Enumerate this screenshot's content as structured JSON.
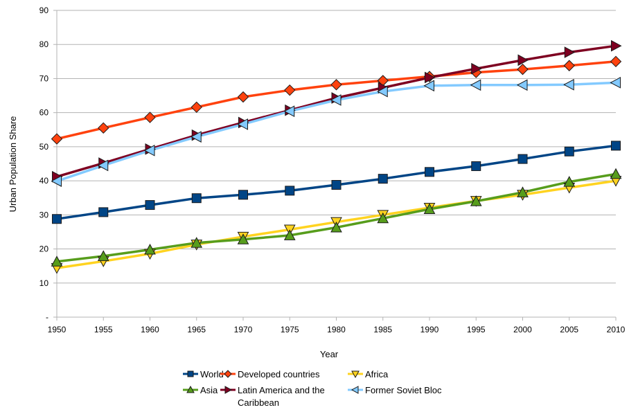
{
  "chart_data": {
    "type": "line",
    "title": "",
    "xlabel": "Year",
    "ylabel": "Urban Population Share",
    "x": [
      1950,
      1955,
      1960,
      1965,
      1970,
      1975,
      1980,
      1985,
      1990,
      1995,
      2000,
      2005,
      2010
    ],
    "xlim": [
      1950,
      2010
    ],
    "ylim": [
      0,
      90
    ],
    "yticks": [
      "-",
      "10",
      "20",
      "30",
      "40",
      "50",
      "60",
      "70",
      "80",
      "90"
    ],
    "xticks": [
      "1950",
      "1955",
      "1960",
      "1965",
      "1970",
      "1975",
      "1980",
      "1985",
      "1990",
      "1995",
      "2000",
      "2005",
      "2010"
    ],
    "grid": true,
    "legend_position": "bottom",
    "series": [
      {
        "name": "World",
        "color": "#004586",
        "marker": "square",
        "values": [
          28.8,
          30.8,
          32.9,
          34.9,
          35.9,
          37.1,
          38.8,
          40.6,
          42.6,
          44.3,
          46.4,
          48.6,
          50.3
        ]
      },
      {
        "name": "Developed countries",
        "color": "#ff420e",
        "marker": "diamond",
        "values": [
          52.3,
          55.5,
          58.6,
          61.6,
          64.6,
          66.6,
          68.2,
          69.4,
          70.6,
          71.8,
          72.7,
          73.8,
          75.0
        ]
      },
      {
        "name": "Africa",
        "color": "#ffd320",
        "marker": "triangle-down",
        "values": [
          14.4,
          16.4,
          18.6,
          21.3,
          23.6,
          25.7,
          27.9,
          30.0,
          32.1,
          34.1,
          35.9,
          38.0,
          40.0
        ]
      },
      {
        "name": "Asia",
        "color": "#579d1c",
        "marker": "triangle-up",
        "values": [
          16.3,
          17.9,
          19.8,
          21.8,
          22.8,
          24.0,
          26.3,
          29.0,
          31.7,
          34.0,
          36.6,
          39.7,
          42.0
        ]
      },
      {
        "name": "Latin America and the Caribbean",
        "color": "#7e0021",
        "marker": "triangle-right",
        "values": [
          41.2,
          45.2,
          49.3,
          53.4,
          57.1,
          60.7,
          64.3,
          67.3,
          70.3,
          72.9,
          75.4,
          77.7,
          79.6
        ]
      },
      {
        "name": "Former Soviet Bloc",
        "color": "#83caff",
        "marker": "triangle-left",
        "values": [
          39.9,
          44.5,
          48.9,
          52.9,
          56.6,
          60.4,
          63.7,
          66.2,
          67.9,
          68.1,
          68.1,
          68.2,
          68.8
        ]
      }
    ]
  }
}
